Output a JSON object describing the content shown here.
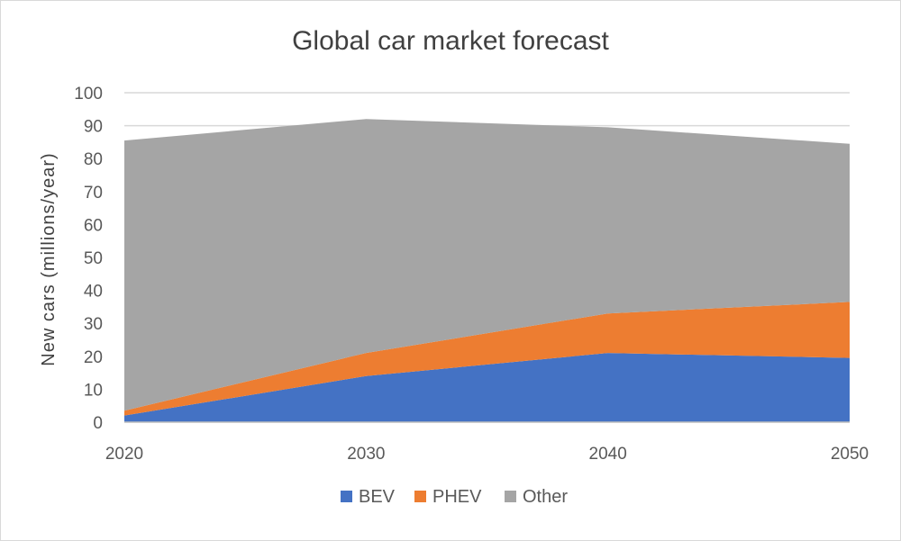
{
  "chart_data": {
    "type": "area",
    "stacked": true,
    "title": "Global car market forecast",
    "ylabel": "New cars (millions/year)",
    "xlabel": "",
    "x": [
      2020,
      2030,
      2040,
      2050
    ],
    "ylim": [
      0,
      100
    ],
    "yticks": [
      0,
      10,
      20,
      30,
      40,
      50,
      60,
      70,
      80,
      90,
      100
    ],
    "grid": true,
    "legend": "bottom",
    "series": [
      {
        "name": "BEV",
        "color": "#4472c4",
        "values": [
          2,
          14,
          21,
          19.5
        ]
      },
      {
        "name": "PHEV",
        "color": "#ed7d31",
        "values": [
          1.5,
          7,
          12,
          17
        ]
      },
      {
        "name": "Other",
        "color": "#a5a5a5",
        "values": [
          82,
          71,
          56.5,
          48
        ]
      }
    ]
  }
}
